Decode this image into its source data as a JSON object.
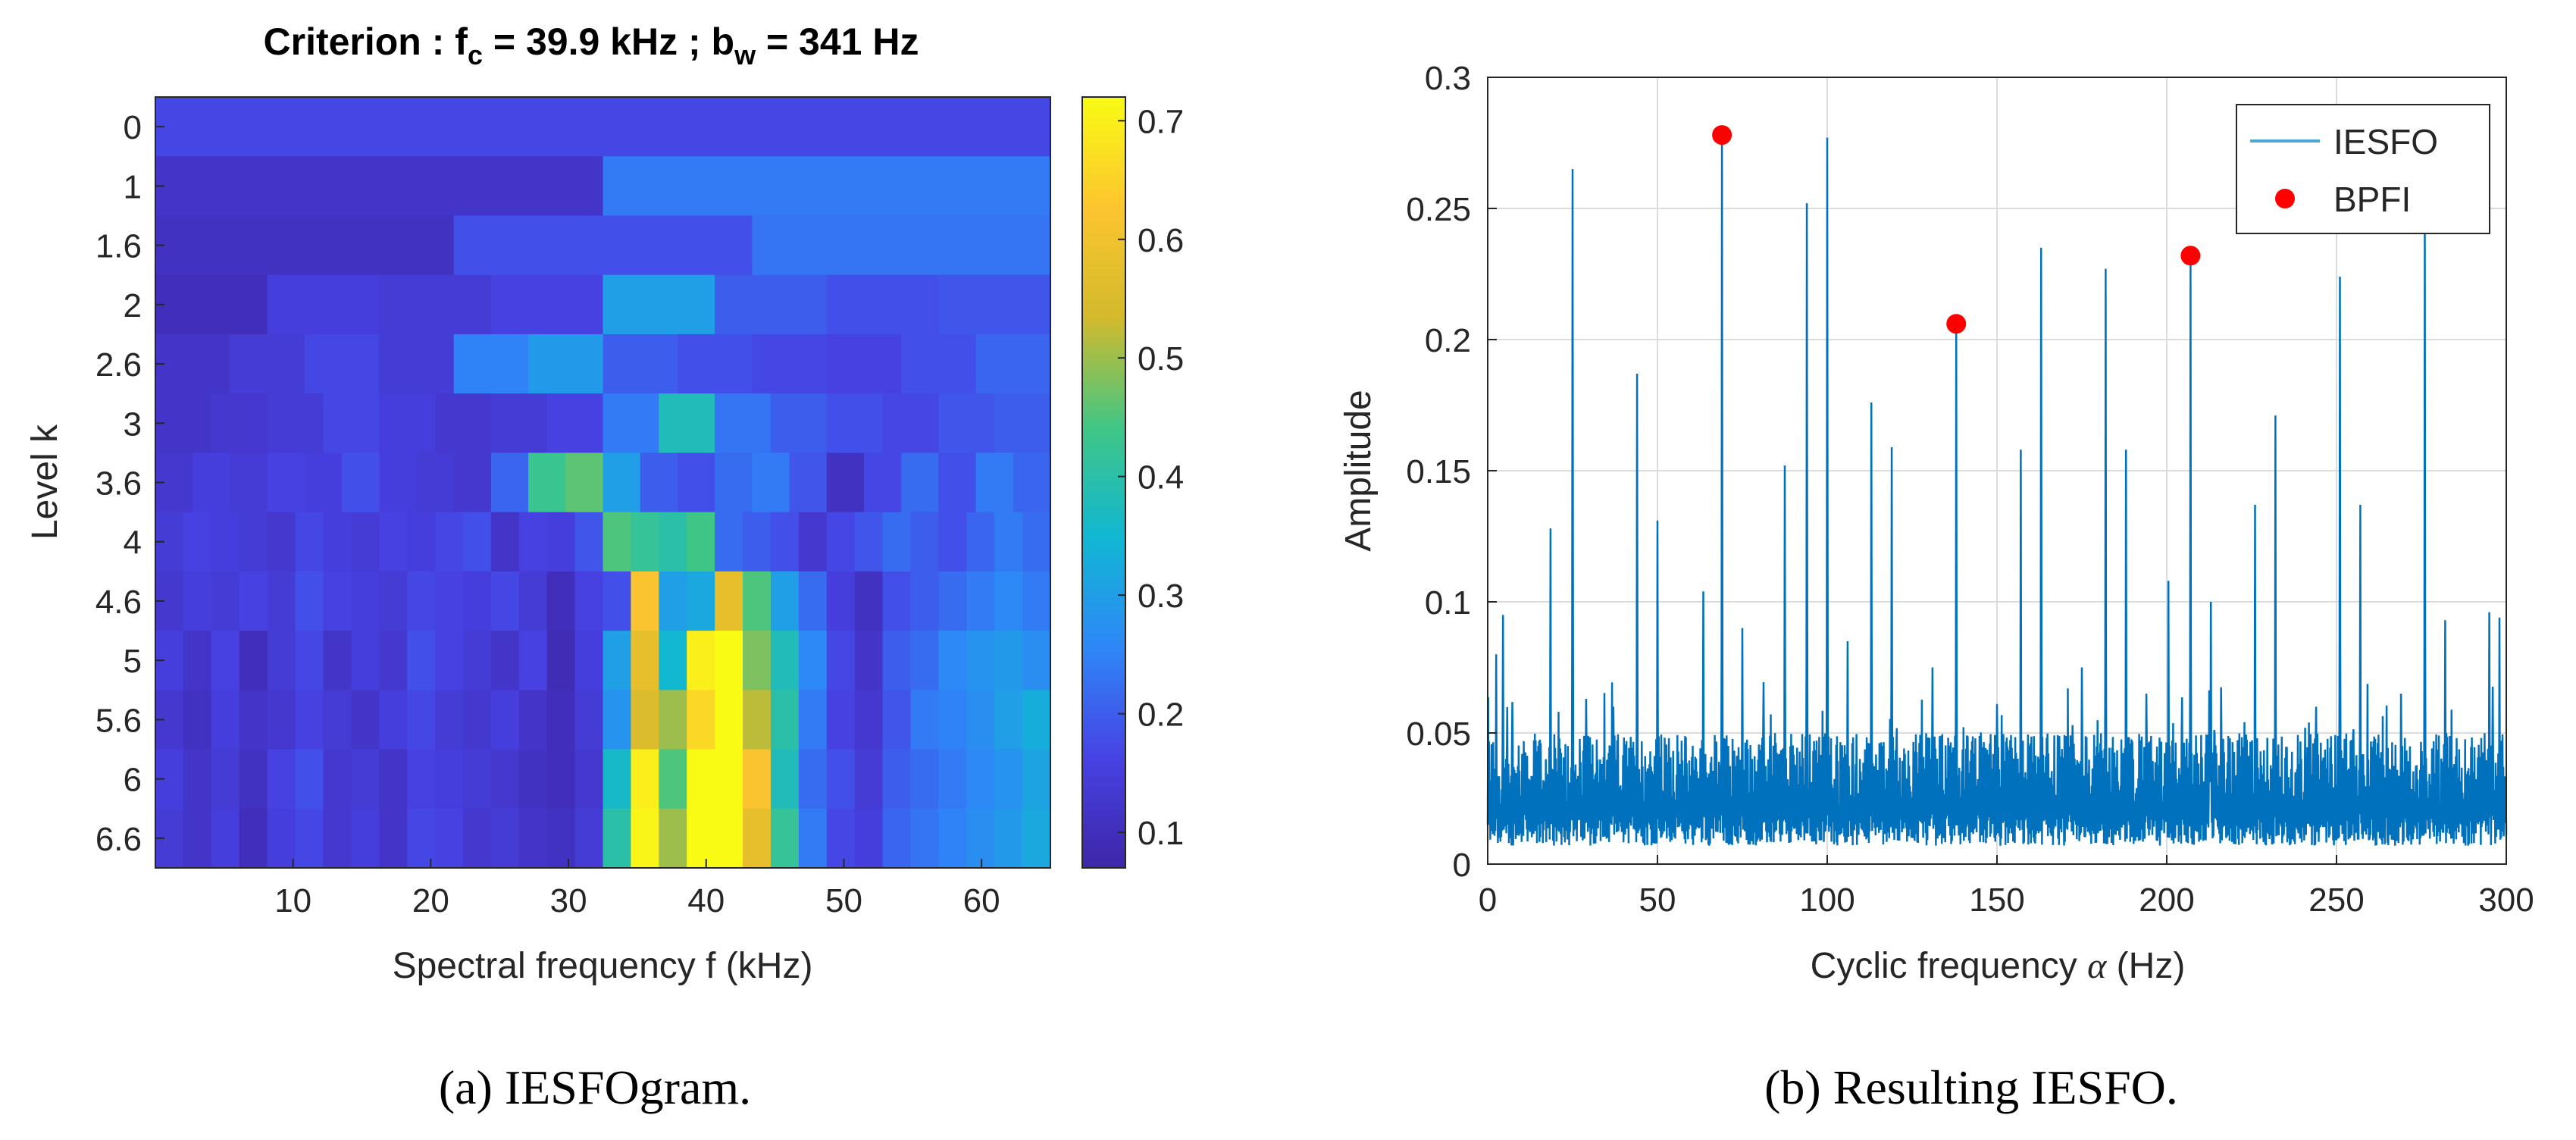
{
  "chart_data": [
    {
      "type": "heatmap",
      "title_prefix": "Criterion : f",
      "title_fc_sub": "c",
      "title_middle": " = 39.9 kHz ; b",
      "title_bw_sub": "w",
      "title_suffix": " = 341 Hz",
      "xlabel": "Spectral frequency f (kHz)",
      "ylabel": "Level k",
      "xlim": [
        0,
        65
      ],
      "x_ticks": [
        10,
        20,
        30,
        40,
        50,
        60
      ],
      "y_tick_labels": [
        "0",
        "1",
        "1.6",
        "2",
        "2.6",
        "3",
        "3.6",
        "4",
        "4.6",
        "5",
        "5.6",
        "6",
        "6.6"
      ],
      "colorbar": {
        "min": 0.07,
        "max": 0.72,
        "ticks": [
          "0.1",
          "0.2",
          "0.3",
          "0.4",
          "0.5",
          "0.6",
          "0.7"
        ]
      },
      "colormap": [
        "#3e26a8",
        "#4742e4",
        "#2e87f7",
        "#11b7d3",
        "#40c685",
        "#d3ba2c",
        "#fcc52f",
        "#f9fb15"
      ],
      "caption": "(a) IESFOgram.",
      "rows": [
        [
          0.17
        ],
        [
          0.12,
          0.24
        ],
        [
          0.11,
          0.18,
          0.23
        ],
        [
          0.1,
          0.15,
          0.14,
          0.16,
          0.3,
          0.2,
          0.18,
          0.19
        ],
        [
          0.12,
          0.14,
          0.17,
          0.14,
          0.25,
          0.29,
          0.2,
          0.18,
          0.17,
          0.16,
          0.18,
          0.21
        ],
        [
          0.12,
          0.13,
          0.14,
          0.17,
          0.15,
          0.13,
          0.14,
          0.16,
          0.24,
          0.38,
          0.23,
          0.2,
          0.18,
          0.17,
          0.19,
          0.2
        ],
        [
          0.13,
          0.15,
          0.14,
          0.16,
          0.15,
          0.18,
          0.15,
          0.14,
          0.13,
          0.21,
          0.43,
          0.46,
          0.3,
          0.2,
          0.18,
          0.22,
          0.24,
          0.19,
          0.11,
          0.17,
          0.22,
          0.18,
          0.24,
          0.21
        ],
        [
          0.14,
          0.16,
          0.15,
          0.14,
          0.13,
          0.17,
          0.15,
          0.14,
          0.16,
          0.15,
          0.17,
          0.18,
          0.12,
          0.16,
          0.15,
          0.19,
          0.45,
          0.42,
          0.4,
          0.44,
          0.22,
          0.2,
          0.18,
          0.13,
          0.17,
          0.19,
          0.22,
          0.2,
          0.18,
          0.21,
          0.24,
          0.22
        ],
        [
          0.13,
          0.15,
          0.14,
          0.16,
          0.14,
          0.18,
          0.16,
          0.15,
          0.14,
          0.17,
          0.16,
          0.15,
          0.17,
          0.14,
          0.1,
          0.16,
          0.18,
          0.62,
          0.3,
          0.32,
          0.58,
          0.45,
          0.3,
          0.22,
          0.15,
          0.11,
          0.18,
          0.2,
          0.22,
          0.24,
          0.26,
          0.24
        ],
        [
          0.15,
          0.12,
          0.16,
          0.1,
          0.14,
          0.17,
          0.12,
          0.15,
          0.13,
          0.18,
          0.16,
          0.14,
          0.12,
          0.16,
          0.09,
          0.15,
          0.3,
          0.58,
          0.35,
          0.7,
          0.72,
          0.48,
          0.38,
          0.26,
          0.17,
          0.12,
          0.2,
          0.22,
          0.26,
          0.28,
          0.29,
          0.27
        ],
        [
          0.13,
          0.11,
          0.15,
          0.12,
          0.13,
          0.16,
          0.14,
          0.12,
          0.15,
          0.17,
          0.14,
          0.13,
          0.15,
          0.12,
          0.1,
          0.14,
          0.28,
          0.55,
          0.5,
          0.66,
          0.72,
          0.52,
          0.4,
          0.24,
          0.16,
          0.13,
          0.19,
          0.24,
          0.25,
          0.27,
          0.3,
          0.33
        ],
        [
          0.15,
          0.12,
          0.14,
          0.11,
          0.16,
          0.18,
          0.13,
          0.14,
          0.12,
          0.16,
          0.15,
          0.14,
          0.13,
          0.11,
          0.1,
          0.13,
          0.36,
          0.7,
          0.45,
          0.72,
          0.72,
          0.62,
          0.38,
          0.22,
          0.18,
          0.14,
          0.2,
          0.22,
          0.24,
          0.26,
          0.28,
          0.31
        ],
        [
          0.14,
          0.12,
          0.15,
          0.1,
          0.15,
          0.17,
          0.13,
          0.15,
          0.12,
          0.17,
          0.16,
          0.13,
          0.14,
          0.12,
          0.11,
          0.14,
          0.4,
          0.71,
          0.5,
          0.72,
          0.72,
          0.58,
          0.42,
          0.24,
          0.17,
          0.15,
          0.21,
          0.23,
          0.25,
          0.27,
          0.29,
          0.32
        ]
      ]
    },
    {
      "type": "line",
      "xlabel_prefix": "Cyclic frequency ",
      "xlabel_symbol": "α",
      "xlabel_suffix": " (Hz)",
      "ylabel": "Amplitude",
      "xlim": [
        0,
        300
      ],
      "ylim": [
        0,
        0.3
      ],
      "x_ticks": [
        0,
        50,
        100,
        150,
        200,
        250,
        300
      ],
      "y_ticks": [
        0,
        0.05,
        0.1,
        0.15,
        0.2,
        0.25,
        0.3
      ],
      "y_tick_labels": [
        "0",
        "0.05",
        "0.1",
        "0.15",
        "0.2",
        "0.25",
        "0.3"
      ],
      "grid": true,
      "legend_position": "top-right",
      "caption": "(b) Resulting IESFO.",
      "series": [
        {
          "name": "IESFO",
          "kind": "line",
          "color": "#0072bd",
          "legend_color": "#4da6d9",
          "baseline": [
            0.007,
            0.05
          ],
          "peaks": [
            [
              2.5,
              0.08
            ],
            [
              4.5,
              0.095
            ],
            [
              18.5,
              0.128
            ],
            [
              25,
              0.265
            ],
            [
              29,
              0.063
            ],
            [
              37,
              0.06
            ],
            [
              44,
              0.187
            ],
            [
              50,
              0.131
            ],
            [
              63.5,
              0.104
            ],
            [
              69,
              0.277
            ],
            [
              75,
              0.09
            ],
            [
              87.5,
              0.152
            ],
            [
              94,
              0.252
            ],
            [
              100,
              0.277
            ],
            [
              106,
              0.085
            ],
            [
              113,
              0.176
            ],
            [
              119,
              0.159
            ],
            [
              131,
              0.075
            ],
            [
              138,
              0.206
            ],
            [
              150,
              0.061
            ],
            [
              157,
              0.158
            ],
            [
              163,
              0.235
            ],
            [
              175,
              0.075
            ],
            [
              182,
              0.227
            ],
            [
              188,
              0.158
            ],
            [
              194,
              0.065
            ],
            [
              200.5,
              0.108
            ],
            [
              207,
              0.231
            ],
            [
              213,
              0.1
            ],
            [
              226,
              0.137
            ],
            [
              232,
              0.171
            ],
            [
              244,
              0.06
            ],
            [
              251,
              0.224
            ],
            [
              257,
              0.137
            ],
            [
              269,
              0.065
            ],
            [
              276,
              0.25
            ],
            [
              282,
              0.093
            ],
            [
              295,
              0.096
            ],
            [
              298,
              0.094
            ]
          ]
        },
        {
          "name": "BPFI",
          "kind": "scatter",
          "color": "#ff0000",
          "x": [
            69,
            138,
            207
          ],
          "y": [
            0.278,
            0.206,
            0.232
          ]
        }
      ]
    }
  ]
}
